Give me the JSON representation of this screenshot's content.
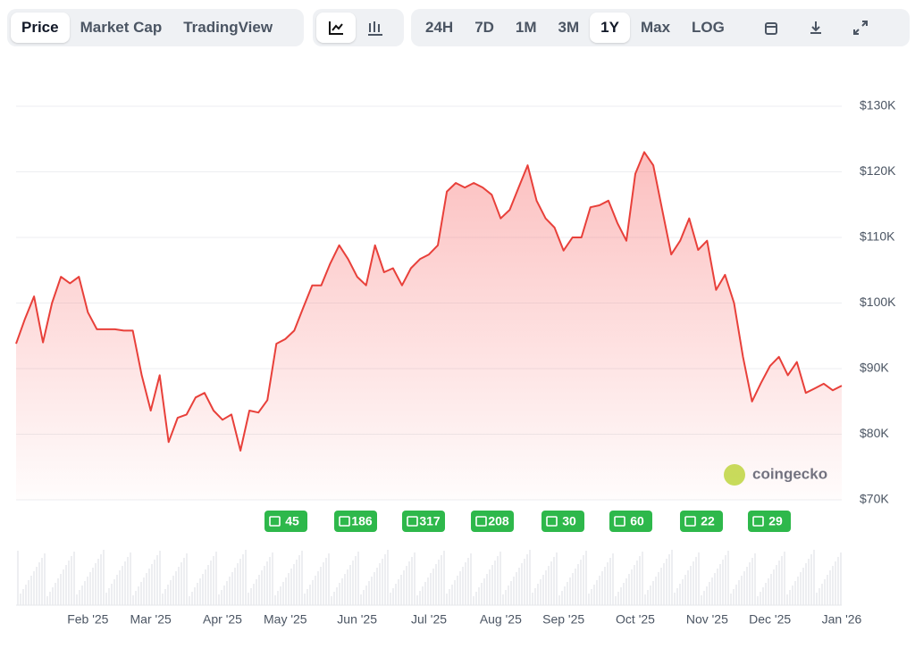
{
  "toolbar": {
    "tabs": [
      "Price",
      "Market Cap",
      "TradingView"
    ],
    "ranges": [
      "24H",
      "7D",
      "1M",
      "3M",
      "1Y",
      "Max",
      "LOG"
    ]
  },
  "chart_data": {
    "type": "line",
    "color": "#e8403a",
    "categories": [
      null,
      null,
      null,
      null,
      null,
      null,
      null,
      null,
      "Feb '25",
      null,
      null,
      null,
      null,
      null,
      null,
      "Mar '25",
      null,
      null,
      null,
      null,
      null,
      null,
      null,
      "Apr '25",
      null,
      null,
      null,
      null,
      null,
      null,
      "May '25",
      null,
      null,
      null,
      null,
      null,
      null,
      null,
      "Jun '25",
      null,
      null,
      null,
      null,
      null,
      null,
      null,
      "Jul '25",
      null,
      null,
      null,
      null,
      null,
      null,
      null,
      "Aug '25",
      null,
      null,
      null,
      null,
      null,
      null,
      "Sep '25",
      null,
      null,
      null,
      null,
      null,
      null,
      null,
      "Oct '25",
      null,
      null,
      null,
      null,
      null,
      null,
      null,
      "Nov '25",
      null,
      null,
      null,
      null,
      null,
      null,
      "Dec '25",
      null,
      null,
      null,
      null,
      null,
      null,
      null,
      "Jan '26"
    ],
    "values": [
      93800,
      97600,
      101000,
      94000,
      100000,
      104000,
      103000,
      104000,
      98600,
      96000,
      96000,
      96000,
      95800,
      95800,
      89000,
      83600,
      89000,
      78800,
      82500,
      83000,
      85600,
      86300,
      83600,
      82200,
      83000,
      77500,
      83600,
      83300,
      85200,
      93800,
      94500,
      95800,
      99300,
      102700,
      102700,
      106000,
      108800,
      106700,
      104000,
      102700,
      108800,
      104700,
      105300,
      102700,
      105300,
      106700,
      107400,
      108800,
      117000,
      118300,
      117600,
      118300,
      117600,
      116500,
      112900,
      114200,
      117600,
      121000,
      115600,
      112900,
      111500,
      108000,
      110000,
      110000,
      114600,
      114900,
      115600,
      112200,
      109500,
      119700,
      123000,
      121000,
      114200,
      107400,
      109500,
      112900,
      108100,
      109500,
      102000,
      104300,
      100000,
      91800,
      85000,
      87800,
      90400,
      91800,
      89000,
      91000,
      86300,
      87000,
      87700,
      86700,
      87400
    ],
    "ylim": [
      70000,
      130000
    ],
    "yticks": [
      {
        "value": 70000,
        "label": "$70K"
      },
      {
        "value": 80000,
        "label": "$80K"
      },
      {
        "value": 90000,
        "label": "$90K"
      },
      {
        "value": 100000,
        "label": "$100K"
      },
      {
        "value": 110000,
        "label": "$110K"
      },
      {
        "value": 120000,
        "label": "$120K"
      },
      {
        "value": 130000,
        "label": "$130K"
      }
    ],
    "grid": true,
    "news_badges": [
      "45",
      "186",
      "317",
      "208",
      "30",
      "60",
      "22",
      "29"
    ],
    "watermark": "coingecko"
  }
}
